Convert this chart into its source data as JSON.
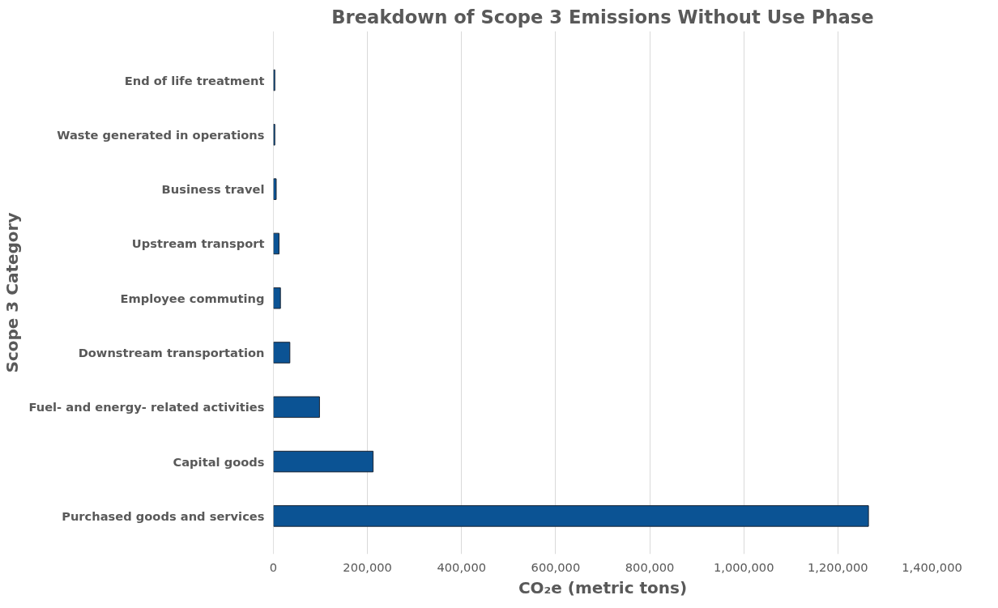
{
  "chart_data": {
    "type": "bar",
    "orientation": "horizontal",
    "title": "Breakdown of Scope 3 Emissions Without Use Phase",
    "xlabel": "CO₂e (metric tons)",
    "ylabel": "Scope 3 Category",
    "categories": [
      "End of life treatment",
      "Waste generated in operations",
      "Business travel",
      "Upstream transport",
      "Employee commuting",
      "Downstream transportation",
      "Fuel- and energy- related activities",
      "Capital goods",
      "Purchased goods and services"
    ],
    "values": [
      3000,
      3000,
      6000,
      12000,
      15000,
      35000,
      98000,
      212000,
      1265000
    ],
    "color": "#0b5394",
    "xlim": [
      0,
      1400000
    ],
    "xticks": [
      {
        "value": 0,
        "label": "0"
      },
      {
        "value": 200000,
        "label": "200,000"
      },
      {
        "value": 400000,
        "label": "400,000"
      },
      {
        "value": 600000,
        "label": "600,000"
      },
      {
        "value": 800000,
        "label": "800,000"
      },
      {
        "value": 1000000,
        "label": "1,000,000"
      },
      {
        "value": 1200000,
        "label": "1,200,000"
      },
      {
        "value": 1400000,
        "label": "1,400,000"
      }
    ],
    "grid": "x"
  }
}
